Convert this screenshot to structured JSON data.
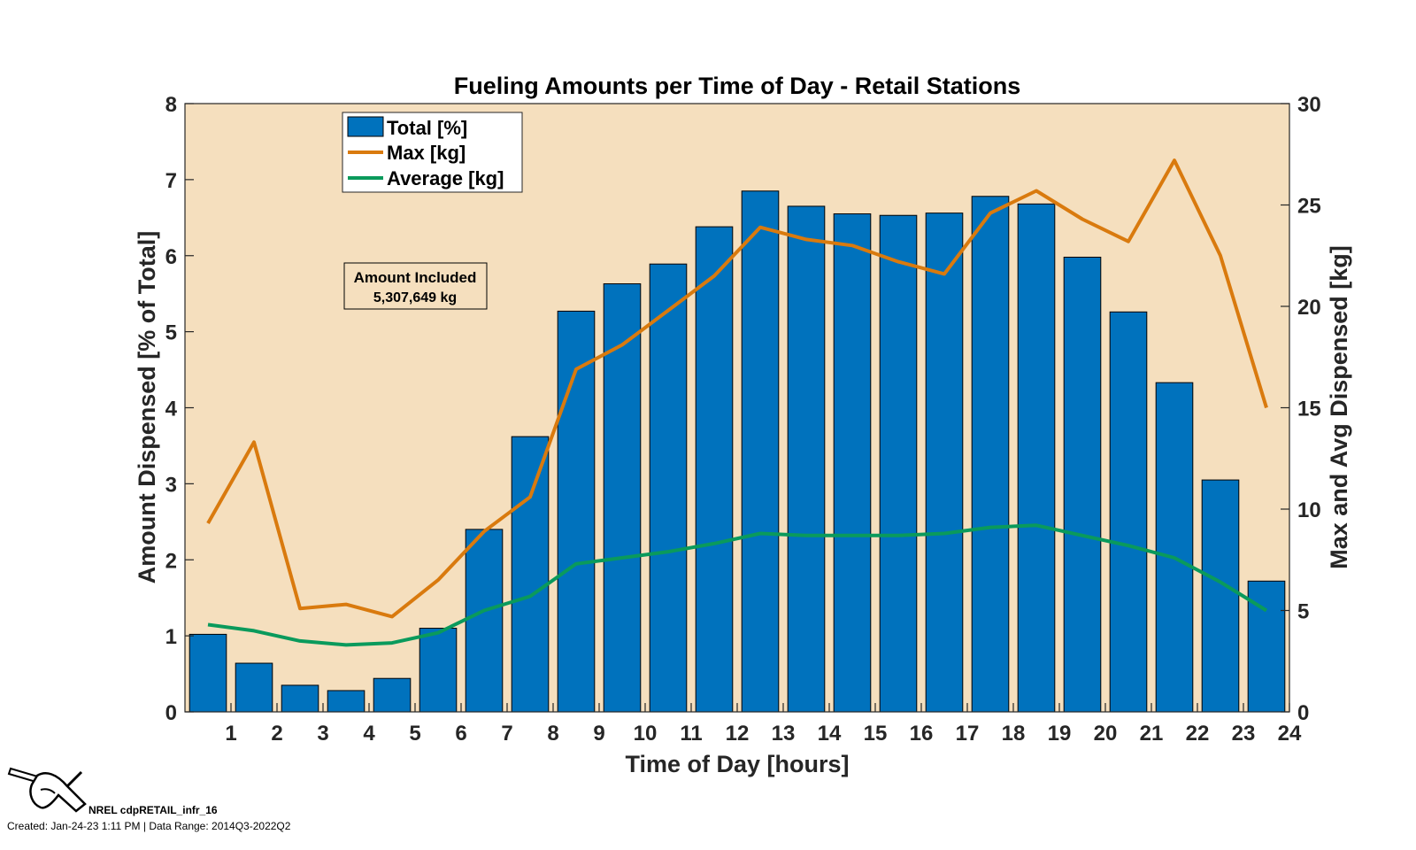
{
  "chart_data": {
    "type": "bar",
    "title": "Fueling Amounts per Time of Day - Retail Stations",
    "xlabel": "Time of Day [hours]",
    "ylabel_left": "Amount Dispensed [% of Total]",
    "ylabel_right": "Max and Avg Dispensed [kg]",
    "x_ticks": [
      "1",
      "2",
      "3",
      "4",
      "5",
      "6",
      "7",
      "8",
      "9",
      "10",
      "11",
      "12",
      "13",
      "14",
      "15",
      "16",
      "17",
      "18",
      "19",
      "20",
      "21",
      "22",
      "23",
      "24"
    ],
    "x_range": [
      0,
      24
    ],
    "ylim_left": [
      0,
      8
    ],
    "y_ticks_left": [
      "0",
      "1",
      "2",
      "3",
      "4",
      "5",
      "6",
      "7",
      "8"
    ],
    "ylim_right": [
      0,
      30
    ],
    "y_ticks_right": [
      "0",
      "5",
      "10",
      "15",
      "20",
      "25",
      "30"
    ],
    "categories": [
      0.5,
      1.5,
      2.5,
      3.5,
      4.5,
      5.5,
      6.5,
      7.5,
      8.5,
      9.5,
      10.5,
      11.5,
      12.5,
      13.5,
      14.5,
      15.5,
      16.5,
      17.5,
      18.5,
      19.5,
      20.5,
      21.5,
      22.5,
      23.5
    ],
    "series": [
      {
        "name": "Total [%]",
        "axis": "left",
        "kind": "bar",
        "color": "#0072BD",
        "values": [
          1.02,
          0.64,
          0.35,
          0.28,
          0.44,
          1.1,
          2.4,
          3.62,
          5.27,
          5.63,
          5.89,
          6.38,
          6.85,
          6.65,
          6.55,
          6.53,
          6.56,
          6.78,
          6.68,
          5.98,
          5.26,
          4.33,
          3.05,
          1.72
        ]
      },
      {
        "name": "Max [kg]",
        "axis": "right",
        "kind": "line",
        "color": "#D97A0E",
        "values": [
          9.3,
          13.3,
          5.1,
          5.3,
          4.7,
          6.5,
          8.9,
          10.6,
          16.9,
          18.1,
          19.8,
          21.5,
          23.9,
          23.3,
          23.0,
          22.2,
          21.6,
          24.6,
          25.7,
          24.3,
          23.2,
          27.2,
          22.5,
          15.0
        ]
      },
      {
        "name": "Average [kg]",
        "axis": "right",
        "kind": "line",
        "color": "#0A9A5C",
        "values": [
          4.3,
          4.0,
          3.5,
          3.3,
          3.4,
          3.9,
          5.0,
          5.7,
          7.3,
          7.6,
          7.9,
          8.3,
          8.8,
          8.7,
          8.7,
          8.7,
          8.8,
          9.1,
          9.2,
          8.7,
          8.2,
          7.6,
          6.4,
          5.0
        ]
      }
    ],
    "legend": {
      "placement": "top-left",
      "entries": [
        "Total [%]",
        "Max [kg]",
        "Average [kg]"
      ]
    },
    "annotation": {
      "title": "Amount Included",
      "value": "5,307,649 kg"
    },
    "grid": false,
    "colors": {
      "plot_background": "#F5DFBE"
    }
  },
  "footer": {
    "id": "NREL cdpRETAIL_infr_16",
    "created": "Created: Jan-24-23  1:11 PM | Data Range: 2014Q3-2022Q2"
  }
}
